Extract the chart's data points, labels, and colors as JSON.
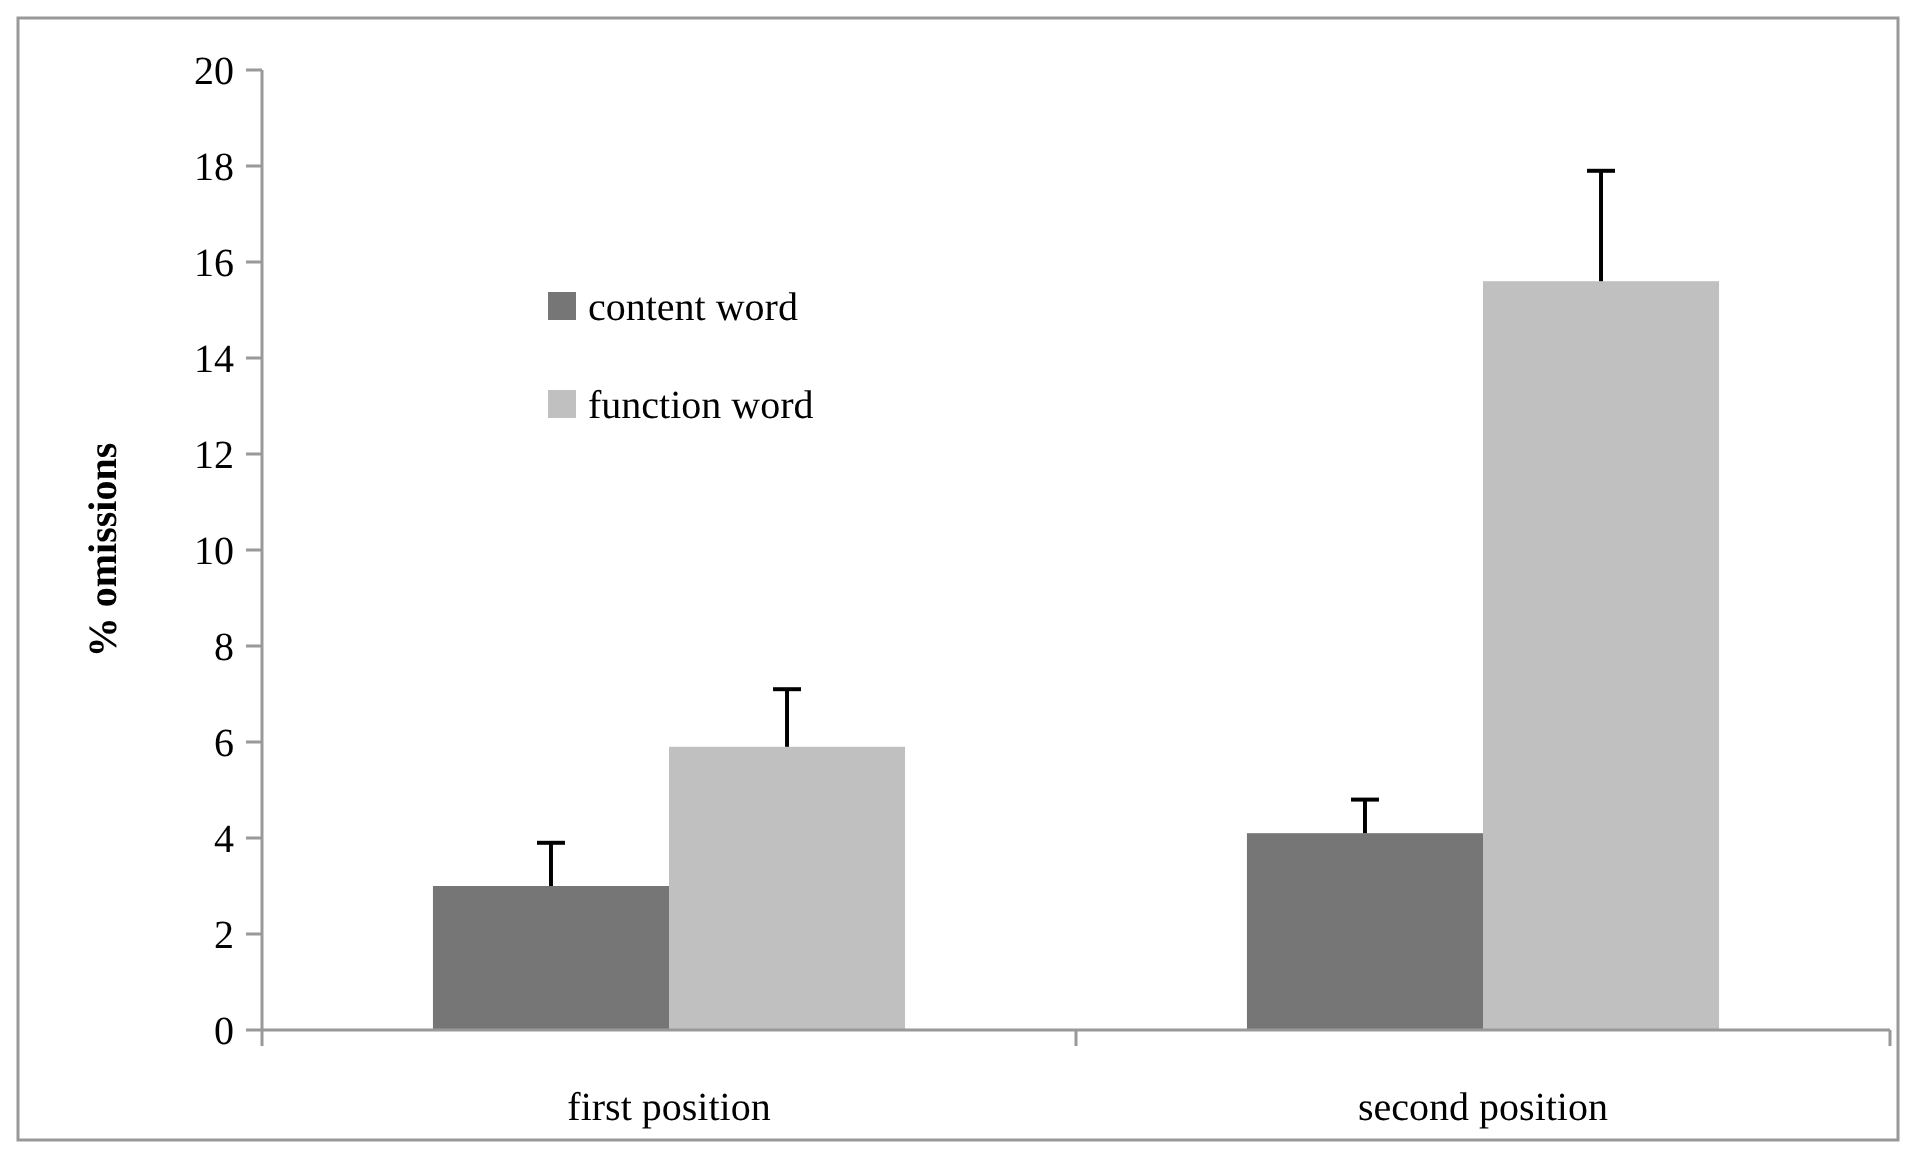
{
  "chart_data": {
    "type": "bar",
    "categories": [
      "first position",
      "second position"
    ],
    "ylabel": "% omissions",
    "ylim": [
      0,
      20
    ],
    "yticks": [
      0,
      2,
      4,
      6,
      8,
      10,
      12,
      14,
      16,
      18,
      20
    ],
    "grid": false,
    "legend": "top left",
    "series": [
      {
        "name": "content word",
        "color": "#767676",
        "values": [
          3.0,
          4.1
        ],
        "errors": [
          [
            3.0,
            3.9
          ],
          [
            4.1,
            4.8
          ]
        ]
      },
      {
        "name": "function word",
        "color": "#c0c0c0",
        "values": [
          5.9,
          15.6
        ],
        "errors": [
          [
            5.9,
            7.1
          ],
          [
            15.6,
            17.9
          ]
        ]
      }
    ]
  }
}
